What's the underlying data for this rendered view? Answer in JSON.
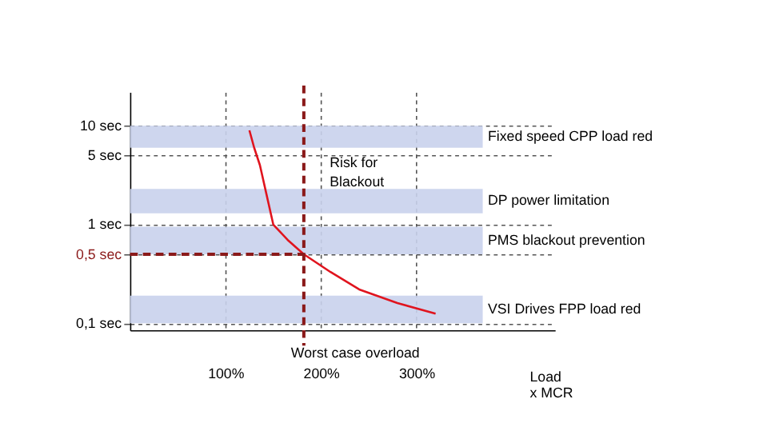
{
  "chart_data": {
    "type": "line",
    "x": [
      125,
      130,
      136,
      143,
      150,
      165,
      182,
      210,
      240,
      280,
      320
    ],
    "series": [
      {
        "color": "#e0141e",
        "values": [
          9,
          6,
          4,
          2,
          1,
          0.7,
          0.5,
          0.33,
          0.22,
          0.16,
          0.125
        ]
      }
    ],
    "xlabel": "Load x MCR",
    "xlim": [
      0,
      445
    ],
    "xticks": [
      {
        "value": 100,
        "label": "100%"
      },
      {
        "value": 200,
        "label": "200%"
      },
      {
        "value": 300,
        "label": "300%"
      }
    ],
    "log": "y",
    "ylim": [
      0.085,
      22
    ],
    "yticks": [
      {
        "value": 0.1,
        "label": "0,1 sec"
      },
      {
        "value": 0.5,
        "label": "0,5 sec"
      },
      {
        "value": 1,
        "label": "1 sec"
      },
      {
        "value": 5,
        "label": "5 sec"
      },
      {
        "value": 10,
        "label": "10 sec"
      }
    ],
    "grid": true,
    "line_style": "solid",
    "marker": "none",
    "bands": [
      {
        "axis": "y",
        "from": 6,
        "to": 10,
        "label": "Fixed speed CPP load red",
        "color": "#c9d1ec"
      },
      {
        "axis": "y",
        "from": 1.3,
        "to": 2.3,
        "label": "DP power limitation",
        "color": "#c9d1ec"
      },
      {
        "axis": "y",
        "from": 0.5,
        "to": 0.95,
        "label": "PMS blackout prevention",
        "color": "#c9d1ec"
      },
      {
        "axis": "y",
        "from": 0.1,
        "to": 0.19,
        "label": "VSI Drives FPP load red",
        "color": "#c9d1ec"
      }
    ],
    "ref_lines": [
      {
        "axis": "x",
        "value": 182,
        "label": "Worst case overload",
        "color": "#8b1a1a",
        "line_style": "dashed"
      },
      {
        "axis": "y",
        "value": 0.5,
        "label": null,
        "color": "#8b1a1a",
        "line_style": "dashed"
      }
    ],
    "annotations": [
      "Risk for Blackout"
    ]
  }
}
